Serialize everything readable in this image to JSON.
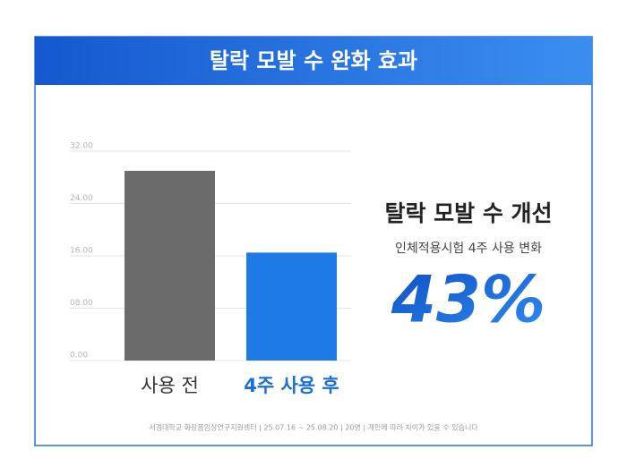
{
  "chart_data": {
    "type": "bar",
    "title": "탈락 모발 수 완화 효과",
    "categories": [
      "사용 전",
      "4주 사용 후"
    ],
    "values": [
      29,
      16.5
    ],
    "colors": [
      "#6b6b6b",
      "#1d7ae6"
    ],
    "ylim": [
      0,
      32
    ],
    "yticks": [
      {
        "value": 0,
        "label": "0.00"
      },
      {
        "value": 8,
        "label": "08.00"
      },
      {
        "value": 16,
        "label": "16.00"
      },
      {
        "value": 24,
        "label": "24.00"
      },
      {
        "value": 32,
        "label": "32.00"
      }
    ],
    "grid": true,
    "highlight_title": "탈락 모발 수 개선",
    "highlight_subtitle": "인체적용시험 4주 사용 변화",
    "highlight_value": "43%",
    "footnote": "서경대학교 화장품임상연구지원센터  |  25.07.16 ~ 25.08.20  |  20명  |  개인에 따라 차이가 있을 수 있습니다"
  }
}
